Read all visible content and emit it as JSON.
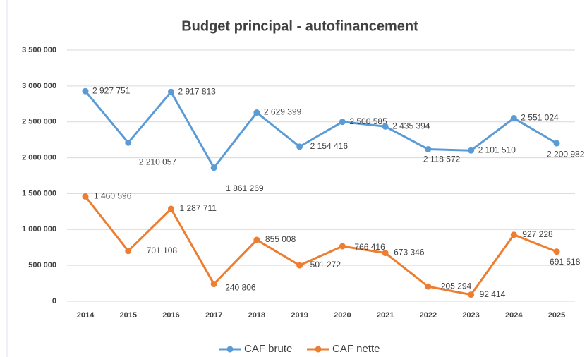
{
  "chart_data": {
    "type": "line",
    "title": "Budget principal - autofinancement",
    "categories": [
      "2014",
      "2015",
      "2016",
      "2017",
      "2018",
      "2019",
      "2020",
      "2021",
      "2022",
      "2023",
      "2024",
      "2025"
    ],
    "series": [
      {
        "name": "CAF brute",
        "color": "#5b9bd5",
        "values": [
          2927751,
          2210057,
          2917813,
          1861269,
          2629399,
          2154416,
          2500585,
          2435394,
          2118572,
          2101510,
          2551024,
          2200982
        ],
        "value_labels": [
          "2 927 751",
          "2 210 057",
          "2 917 813",
          "1 861 269",
          "2 629 399",
          "2 154 416",
          "2 500 585",
          "2 435 394",
          "2 118 572",
          "2 101 510",
          "2 551 024",
          "2 200 982"
        ]
      },
      {
        "name": "CAF nette",
        "color": "#ed7d31",
        "values": [
          1460596,
          701108,
          1287711,
          240806,
          855008,
          501272,
          766416,
          673346,
          205294,
          92414,
          927228,
          691518
        ],
        "value_labels": [
          "1 460 596",
          "701 108",
          "1 287 711",
          "240 806",
          "855 008",
          "501 272",
          "766 416",
          "673 346",
          "205 294",
          "92 414",
          "927 228",
          "691 518"
        ]
      }
    ],
    "ylim": [
      0,
      3500000
    ],
    "yticks": [
      0,
      {
        "value": 500000,
        "label": "500 000"
      },
      {
        "value": 1000000,
        "label": "1 000 000"
      },
      {
        "value": 1500000,
        "label": "1 500 000"
      },
      {
        "value": 2000000,
        "label": "2 000 000"
      },
      {
        "value": 2500000,
        "label": "2 500 000"
      },
      {
        "value": 3000000,
        "label": "3 000 000"
      },
      {
        "value": 3500000,
        "label": "3 500 000"
      }
    ],
    "grid": true,
    "legend": "bottom"
  }
}
